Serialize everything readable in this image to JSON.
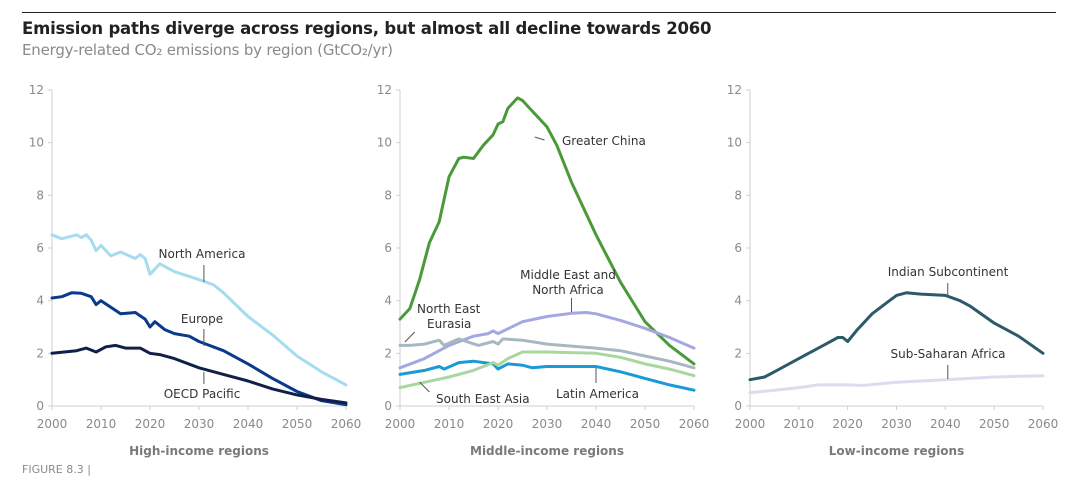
{
  "title": "Emission paths diverge across regions, but almost all decline towards 2060",
  "subtitle": "Energy-related CO₂ emissions by region (GtCO₂/yr)",
  "figure_label": "FIGURE 8.3 |",
  "chart_data": [
    {
      "type": "line",
      "title": "High-income regions",
      "xlim": [
        2000,
        2060
      ],
      "ylim": [
        0,
        12
      ],
      "xticks": [
        "2000",
        "2010",
        "2020",
        "2030",
        "2040",
        "2050",
        "2060"
      ],
      "yticks": [
        "0",
        "2",
        "4",
        "6",
        "8",
        "10",
        "12"
      ],
      "series": [
        {
          "name": "North America",
          "color": "#a6dcef",
          "x": [
            2000,
            2002,
            2005,
            2006,
            2007,
            2008,
            2009,
            2010,
            2012,
            2014,
            2017,
            2018,
            2019,
            2020,
            2022,
            2025,
            2030,
            2033,
            2035,
            2040,
            2045,
            2050,
            2055,
            2060
          ],
          "y": [
            6.5,
            6.35,
            6.5,
            6.4,
            6.5,
            6.3,
            5.9,
            6.1,
            5.7,
            5.85,
            5.6,
            5.75,
            5.6,
            5.0,
            5.4,
            5.1,
            4.8,
            4.6,
            4.3,
            3.4,
            2.7,
            1.9,
            1.3,
            0.8
          ]
        },
        {
          "name": "Europe",
          "color": "#0a3a8c",
          "x": [
            2000,
            2002,
            2004,
            2006,
            2008,
            2009,
            2010,
            2012,
            2014,
            2017,
            2019,
            2020,
            2021,
            2023,
            2025,
            2028,
            2030,
            2035,
            2040,
            2045,
            2050,
            2055,
            2060
          ],
          "y": [
            4.1,
            4.15,
            4.3,
            4.28,
            4.15,
            3.85,
            4.0,
            3.75,
            3.5,
            3.55,
            3.3,
            3.0,
            3.2,
            2.9,
            2.75,
            2.65,
            2.45,
            2.1,
            1.6,
            1.05,
            0.55,
            0.2,
            0.05
          ]
        },
        {
          "name": "OECD Pacific",
          "color": "#10204a",
          "x": [
            2000,
            2005,
            2007,
            2009,
            2011,
            2013,
            2015,
            2018,
            2020,
            2022,
            2025,
            2030,
            2035,
            2040,
            2045,
            2050,
            2055,
            2060
          ],
          "y": [
            2.0,
            2.1,
            2.2,
            2.05,
            2.25,
            2.3,
            2.2,
            2.2,
            2.0,
            1.95,
            1.8,
            1.45,
            1.2,
            0.95,
            0.65,
            0.42,
            0.25,
            0.12
          ]
        }
      ]
    },
    {
      "type": "line",
      "title": "Middle-income regions",
      "xlim": [
        2000,
        2060
      ],
      "ylim": [
        0,
        12
      ],
      "xticks": [
        "2000",
        "2010",
        "2020",
        "2030",
        "2040",
        "2050",
        "2060"
      ],
      "yticks": [
        "0",
        "2",
        "4",
        "6",
        "8",
        "10",
        "12"
      ],
      "series": [
        {
          "name": "Greater China",
          "color": "#4a9a3a",
          "x": [
            2000,
            2002,
            2004,
            2006,
            2008,
            2010,
            2012,
            2013,
            2015,
            2017,
            2019,
            2020,
            2021,
            2022,
            2024,
            2025,
            2027,
            2030,
            2032,
            2035,
            2040,
            2045,
            2050,
            2055,
            2060
          ],
          "y": [
            3.3,
            3.7,
            4.8,
            6.2,
            7.0,
            8.7,
            9.4,
            9.45,
            9.4,
            9.9,
            10.3,
            10.7,
            10.8,
            11.3,
            11.7,
            11.6,
            11.2,
            10.6,
            9.9,
            8.5,
            6.5,
            4.7,
            3.2,
            2.3,
            1.6
          ]
        },
        {
          "name": "Middle East and North Africa",
          "color": "#a3a8e0",
          "x": [
            2000,
            2005,
            2010,
            2015,
            2018,
            2019,
            2020,
            2025,
            2030,
            2035,
            2038,
            2040,
            2045,
            2050,
            2055,
            2060
          ],
          "y": [
            1.45,
            1.8,
            2.3,
            2.65,
            2.75,
            2.85,
            2.75,
            3.2,
            3.4,
            3.52,
            3.55,
            3.5,
            3.25,
            2.95,
            2.6,
            2.2
          ]
        },
        {
          "name": "North East Eurasia",
          "color": "#a8b8c2",
          "x": [
            2000,
            2002,
            2005,
            2008,
            2009,
            2012,
            2016,
            2019,
            2020,
            2021,
            2025,
            2030,
            2040,
            2045,
            2050,
            2055,
            2060
          ],
          "y": [
            2.3,
            2.3,
            2.35,
            2.5,
            2.3,
            2.55,
            2.3,
            2.45,
            2.35,
            2.55,
            2.5,
            2.35,
            2.2,
            2.1,
            1.9,
            1.7,
            1.45
          ]
        },
        {
          "name": "Latin America",
          "color": "#1a9ad6",
          "x": [
            2000,
            2005,
            2008,
            2009,
            2012,
            2015,
            2019,
            2020,
            2022,
            2025,
            2027,
            2030,
            2040,
            2045,
            2050,
            2055,
            2060
          ],
          "y": [
            1.2,
            1.35,
            1.5,
            1.4,
            1.65,
            1.7,
            1.6,
            1.4,
            1.6,
            1.55,
            1.45,
            1.5,
            1.5,
            1.3,
            1.05,
            0.8,
            0.6
          ]
        },
        {
          "name": "South East Asia",
          "color": "#a8d8a0",
          "x": [
            2000,
            2005,
            2010,
            2015,
            2019,
            2020,
            2022,
            2025,
            2030,
            2040,
            2045,
            2050,
            2055,
            2060
          ],
          "y": [
            0.7,
            0.9,
            1.1,
            1.35,
            1.65,
            1.55,
            1.8,
            2.05,
            2.05,
            2.0,
            1.85,
            1.6,
            1.4,
            1.15
          ]
        }
      ]
    },
    {
      "type": "line",
      "title": "Low-income regions",
      "xlim": [
        2000,
        2060
      ],
      "ylim": [
        0,
        12
      ],
      "xticks": [
        "2000",
        "2010",
        "2020",
        "2030",
        "2040",
        "2050",
        "2060"
      ],
      "yticks": [
        "0",
        "2",
        "4",
        "6",
        "8",
        "10",
        "12"
      ],
      "series": [
        {
          "name": "Indian Subcontinent",
          "color": "#2c5a6a",
          "x": [
            2000,
            2003,
            2005,
            2010,
            2013,
            2015,
            2018,
            2019,
            2020,
            2022,
            2025,
            2030,
            2032,
            2035,
            2040,
            2043,
            2045,
            2050,
            2055,
            2060
          ],
          "y": [
            1.0,
            1.1,
            1.3,
            1.8,
            2.1,
            2.3,
            2.6,
            2.6,
            2.45,
            2.9,
            3.5,
            4.2,
            4.3,
            4.25,
            4.2,
            4.0,
            3.8,
            3.15,
            2.65,
            2.0
          ]
        },
        {
          "name": "Sub-Saharan Africa",
          "color": "#dcdcf0",
          "x": [
            2000,
            2005,
            2010,
            2014,
            2020,
            2023,
            2030,
            2040,
            2050,
            2060
          ],
          "y": [
            0.5,
            0.6,
            0.7,
            0.8,
            0.8,
            0.78,
            0.9,
            1.0,
            1.1,
            1.15
          ]
        }
      ]
    }
  ]
}
